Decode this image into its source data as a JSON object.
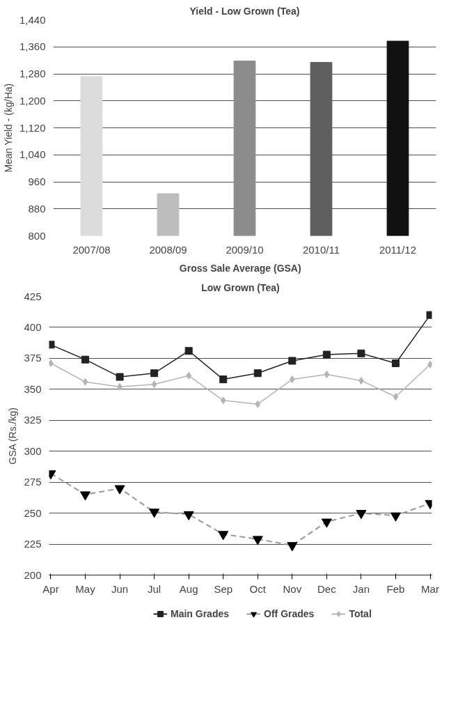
{
  "chart_data": [
    {
      "type": "bar",
      "title": "Yield - Low Grown (Tea)",
      "ylabel": "Mean Yield - (kg/Ha)",
      "categories": [
        "2007/08",
        "2008/09",
        "2009/10",
        "2010/11",
        "2011/12"
      ],
      "values": [
        1272,
        925,
        1318,
        1314,
        1377
      ],
      "colors": [
        "#dcdcdc",
        "#bdbdbd",
        "#8c8c8c",
        "#5f5f5f",
        "#111111"
      ],
      "ylim": [
        800,
        1440
      ],
      "yticks": [
        {
          "value": 800,
          "label": "800"
        },
        {
          "value": 880,
          "label": "880"
        },
        {
          "value": 960,
          "label": "960"
        },
        {
          "value": 1040,
          "label": "1,040"
        },
        {
          "value": 1120,
          "label": "1,120"
        },
        {
          "value": 1200,
          "label": "1,200"
        },
        {
          "value": 1280,
          "label": "1,280"
        },
        {
          "value": 1360,
          "label": "1,360"
        },
        {
          "value": 1440,
          "label": "1,440"
        }
      ],
      "grid": "y"
    },
    {
      "type": "line",
      "title": "Gross Sale Average (GSA)",
      "subtitle": "Low Grown (Tea)",
      "ylabel": "GSA (Rs./kg)",
      "categories": [
        "Apr",
        "May",
        "Jun",
        "Jul",
        "Aug",
        "Sep",
        "Oct",
        "Nov",
        "Dec",
        "Jan",
        "Feb",
        "Mar"
      ],
      "series": [
        {
          "name": "Main Grades",
          "color": "#222222",
          "marker": "square",
          "line_style": "solid",
          "values": [
            386,
            374,
            360,
            363,
            381,
            358,
            363,
            373,
            378,
            379,
            371,
            410
          ]
        },
        {
          "name": "Off Grades",
          "color": "#999999",
          "marker": "triangle",
          "line_style": "dashed",
          "values": [
            282,
            265,
            270,
            251,
            249,
            233,
            229,
            224,
            243,
            250,
            248,
            258
          ]
        },
        {
          "name": "Total",
          "color": "#b4b4b4",
          "marker": "diamond",
          "line_style": "solid",
          "values": [
            371,
            356,
            352,
            354,
            361,
            341,
            338,
            358,
            362,
            357,
            344,
            370
          ]
        }
      ],
      "ylim": [
        200,
        425
      ],
      "yticks": [
        200,
        225,
        250,
        275,
        300,
        325,
        350,
        375,
        400,
        425
      ],
      "grid": "y",
      "legend": "bottom"
    }
  ]
}
